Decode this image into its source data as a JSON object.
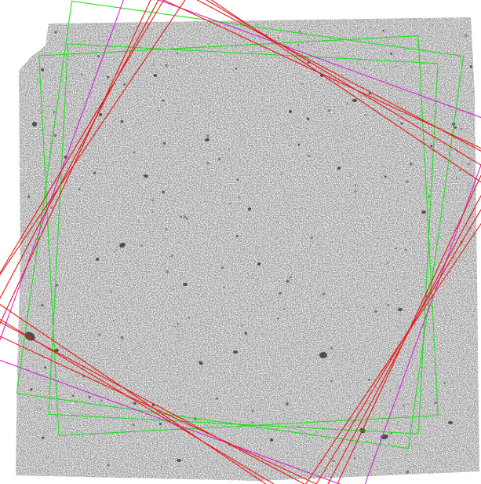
{
  "image": {
    "description_colors": {
      "background": "#ffffff",
      "field": "#eeeeee",
      "noise_dark": "#8a8a8a",
      "galaxy": "#3a3a3a"
    }
  },
  "overlays": {
    "colors": {
      "green": "#22e022",
      "red": "#e81818",
      "magenta": "#e020e0"
    },
    "footprints": [
      {
        "name": "green-footprint-1",
        "color": "green",
        "rotation_deg": 8
      },
      {
        "name": "green-footprint-2",
        "color": "green",
        "rotation_deg": 3
      },
      {
        "name": "green-footprint-3",
        "color": "green",
        "rotation_deg": -3
      },
      {
        "name": "magenta-footprint",
        "color": "magenta",
        "rotation_deg": 20
      },
      {
        "name": "red-footprint-1",
        "color": "red",
        "rotation_deg": 25
      },
      {
        "name": "red-footprint-2",
        "color": "red",
        "rotation_deg": 28
      },
      {
        "name": "red-footprint-3",
        "color": "red",
        "rotation_deg": 31
      },
      {
        "name": "red-footprint-4",
        "color": "red",
        "rotation_deg": 34
      }
    ]
  }
}
